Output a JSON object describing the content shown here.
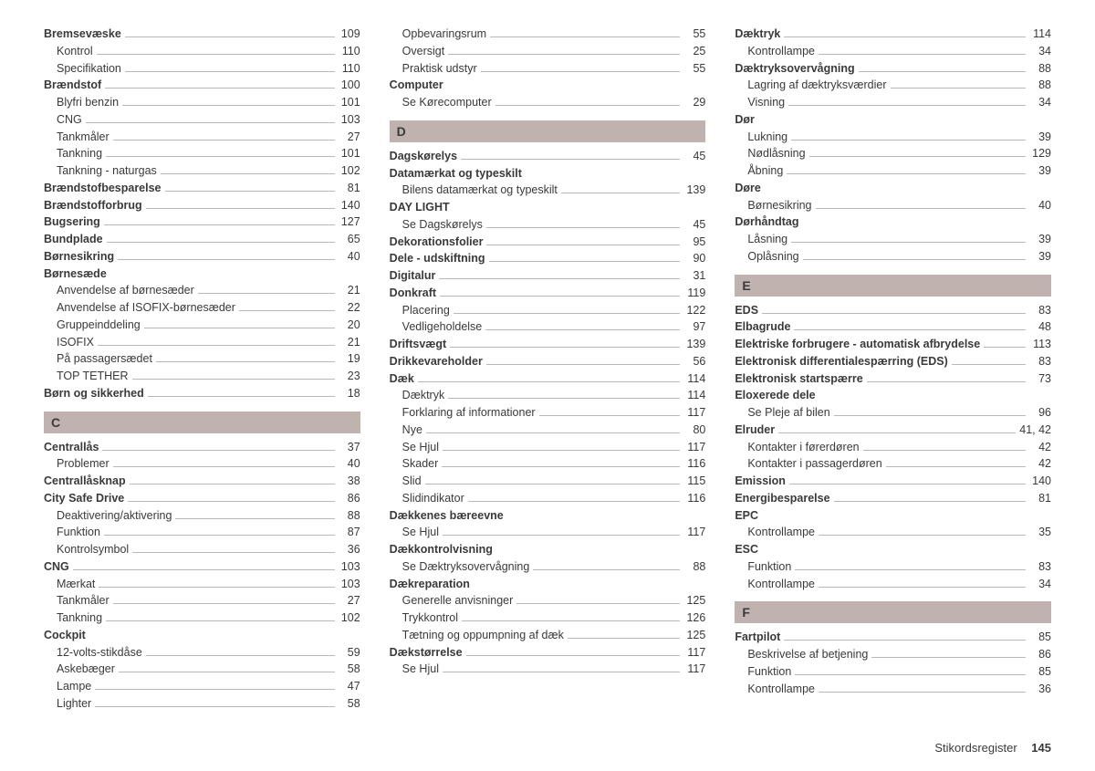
{
  "footer": {
    "title": "Stikordsregister",
    "page": "145"
  },
  "columns": [
    {
      "blocks": [
        {
          "type": "group",
          "entries": [
            {
              "label": "Bremsevæske",
              "page": "109",
              "bold": true
            },
            {
              "label": "Kontrol",
              "page": "110",
              "sub": true
            },
            {
              "label": "Specifikation",
              "page": "110",
              "sub": true
            },
            {
              "label": "Brændstof",
              "page": "100",
              "bold": true
            },
            {
              "label": "Blyfri benzin",
              "page": "101",
              "sub": true
            },
            {
              "label": "CNG",
              "page": "103",
              "sub": true
            },
            {
              "label": "Tankmåler",
              "page": "27",
              "sub": true
            },
            {
              "label": "Tankning",
              "page": "101",
              "sub": true
            },
            {
              "label": "Tankning - naturgas",
              "page": "102",
              "sub": true
            },
            {
              "label": "Brændstofbesparelse",
              "page": "81",
              "bold": true
            },
            {
              "label": "Brændstofforbrug",
              "page": "140",
              "bold": true
            },
            {
              "label": "Bugsering",
              "page": "127",
              "bold": true
            },
            {
              "label": "Bundplade",
              "page": "65",
              "bold": true
            },
            {
              "label": "Børnesikring",
              "page": "40",
              "bold": true
            },
            {
              "label": "Børnesæde",
              "page": "",
              "bold": true,
              "nopage": true
            },
            {
              "label": "Anvendelse af børnesæder",
              "page": "21",
              "sub": true
            },
            {
              "label": "Anvendelse af ISOFIX-børnesæder",
              "page": "22",
              "sub": true
            },
            {
              "label": "Gruppeinddeling",
              "page": "20",
              "sub": true
            },
            {
              "label": "ISOFIX",
              "page": "21",
              "sub": true
            },
            {
              "label": "På passagersædet",
              "page": "19",
              "sub": true
            },
            {
              "label": "TOP TETHER",
              "page": "23",
              "sub": true
            },
            {
              "label": "Børn og sikkerhed",
              "page": "18",
              "bold": true
            }
          ]
        },
        {
          "type": "letter",
          "text": "C"
        },
        {
          "type": "group",
          "entries": [
            {
              "label": "Centrallås",
              "page": "37",
              "bold": true
            },
            {
              "label": "Problemer",
              "page": "40",
              "sub": true
            },
            {
              "label": "Centrallåsknap",
              "page": "38",
              "bold": true
            },
            {
              "label": "City Safe Drive",
              "page": "86",
              "bold": true
            },
            {
              "label": "Deaktivering/aktivering",
              "page": "88",
              "sub": true
            },
            {
              "label": "Funktion",
              "page": "87",
              "sub": true
            },
            {
              "label": "Kontrolsymbol",
              "page": "36",
              "sub": true
            },
            {
              "label": "CNG",
              "page": "103",
              "bold": true
            },
            {
              "label": "Mærkat",
              "page": "103",
              "sub": true
            },
            {
              "label": "Tankmåler",
              "page": "27",
              "sub": true
            },
            {
              "label": "Tankning",
              "page": "102",
              "sub": true
            },
            {
              "label": "Cockpit",
              "page": "",
              "bold": true,
              "nopage": true
            },
            {
              "label": "12-volts-stikdåse",
              "page": "59",
              "sub": true
            },
            {
              "label": "Askebæger",
              "page": "58",
              "sub": true
            },
            {
              "label": "Lampe",
              "page": "47",
              "sub": true
            },
            {
              "label": "Lighter",
              "page": "58",
              "sub": true
            }
          ]
        }
      ]
    },
    {
      "blocks": [
        {
          "type": "group",
          "entries": [
            {
              "label": "Opbevaringsrum",
              "page": "55",
              "sub": true
            },
            {
              "label": "Oversigt",
              "page": "25",
              "sub": true
            },
            {
              "label": "Praktisk udstyr",
              "page": "55",
              "sub": true
            },
            {
              "label": "Computer",
              "page": "",
              "bold": true,
              "nopage": true
            },
            {
              "label": "Se Kørecomputer",
              "page": "29",
              "sub": true
            }
          ]
        },
        {
          "type": "letter",
          "text": "D"
        },
        {
          "type": "group",
          "entries": [
            {
              "label": "Dagskørelys",
              "page": "45",
              "bold": true
            },
            {
              "label": "Datamærkat og typeskilt",
              "page": "",
              "bold": true,
              "nopage": true
            },
            {
              "label": "Bilens datamærkat og typeskilt",
              "page": "139",
              "sub": true
            },
            {
              "label": "DAY LIGHT",
              "page": "",
              "bold": true,
              "nopage": true
            },
            {
              "label": "Se Dagskørelys",
              "page": "45",
              "sub": true
            },
            {
              "label": "Dekorationsfolier",
              "page": "95",
              "bold": true
            },
            {
              "label": "Dele - udskiftning",
              "page": "90",
              "bold": true
            },
            {
              "label": "Digitalur",
              "page": "31",
              "bold": true
            },
            {
              "label": "Donkraft",
              "page": "119",
              "bold": true
            },
            {
              "label": "Placering",
              "page": "122",
              "sub": true
            },
            {
              "label": "Vedligeholdelse",
              "page": "97",
              "sub": true
            },
            {
              "label": "Driftsvægt",
              "page": "139",
              "bold": true
            },
            {
              "label": "Drikkevareholder",
              "page": "56",
              "bold": true
            },
            {
              "label": "Dæk",
              "page": "114",
              "bold": true
            },
            {
              "label": "Dæktryk",
              "page": "114",
              "sub": true
            },
            {
              "label": "Forklaring af informationer",
              "page": "117",
              "sub": true
            },
            {
              "label": "Nye",
              "page": "80",
              "sub": true
            },
            {
              "label": "Se Hjul",
              "page": "117",
              "sub": true
            },
            {
              "label": "Skader",
              "page": "116",
              "sub": true
            },
            {
              "label": "Slid",
              "page": "115",
              "sub": true
            },
            {
              "label": "Slidindikator",
              "page": "116",
              "sub": true
            },
            {
              "label": "Dækkenes bæreevne",
              "page": "",
              "bold": true,
              "nopage": true
            },
            {
              "label": "Se Hjul",
              "page": "117",
              "sub": true
            },
            {
              "label": "Dækkontrolvisning",
              "page": "",
              "bold": true,
              "nopage": true
            },
            {
              "label": "Se Dæktryksovervågning",
              "page": "88",
              "sub": true
            },
            {
              "label": "Dækreparation",
              "page": "",
              "bold": true,
              "nopage": true
            },
            {
              "label": "Generelle anvisninger",
              "page": "125",
              "sub": true
            },
            {
              "label": "Trykkontrol",
              "page": "126",
              "sub": true
            },
            {
              "label": "Tætning og oppumpning af dæk",
              "page": "125",
              "sub": true
            },
            {
              "label": "Dækstørrelse",
              "page": "117",
              "bold": true
            },
            {
              "label": "Se Hjul",
              "page": "117",
              "sub": true
            }
          ]
        }
      ]
    },
    {
      "blocks": [
        {
          "type": "group",
          "entries": [
            {
              "label": "Dæktryk",
              "page": "114",
              "bold": true
            },
            {
              "label": "Kontrollampe",
              "page": "34",
              "sub": true
            },
            {
              "label": "Dæktryksovervågning",
              "page": "88",
              "bold": true
            },
            {
              "label": "Lagring af dæktryksværdier",
              "page": "88",
              "sub": true
            },
            {
              "label": "Visning",
              "page": "34",
              "sub": true
            },
            {
              "label": "Dør",
              "page": "",
              "bold": true,
              "nopage": true
            },
            {
              "label": "Lukning",
              "page": "39",
              "sub": true
            },
            {
              "label": "Nødlåsning",
              "page": "129",
              "sub": true
            },
            {
              "label": "Åbning",
              "page": "39",
              "sub": true
            },
            {
              "label": "Døre",
              "page": "",
              "bold": true,
              "nopage": true
            },
            {
              "label": "Børnesikring",
              "page": "40",
              "sub": true
            },
            {
              "label": "Dørhåndtag",
              "page": "",
              "bold": true,
              "nopage": true
            },
            {
              "label": "Låsning",
              "page": "39",
              "sub": true
            },
            {
              "label": "Oplåsning",
              "page": "39",
              "sub": true
            }
          ]
        },
        {
          "type": "letter",
          "text": "E"
        },
        {
          "type": "group",
          "entries": [
            {
              "label": "EDS",
              "page": "83",
              "bold": true
            },
            {
              "label": "Elbagrude",
              "page": "48",
              "bold": true
            },
            {
              "label": "Elektriske forbrugere - automatisk afbrydelse",
              "page": "113",
              "bold": true
            },
            {
              "label": "Elektronisk differentialespærring (EDS)",
              "page": "83",
              "bold": true
            },
            {
              "label": "Elektronisk startspærre",
              "page": "73",
              "bold": true
            },
            {
              "label": "Eloxerede dele",
              "page": "",
              "bold": true,
              "nopage": true
            },
            {
              "label": "Se Pleje af bilen",
              "page": "96",
              "sub": true
            },
            {
              "label": "Elruder",
              "page": "41, 42",
              "bold": true
            },
            {
              "label": "Kontakter i førerdøren",
              "page": "42",
              "sub": true
            },
            {
              "label": "Kontakter i passagerdøren",
              "page": "42",
              "sub": true
            },
            {
              "label": "Emission",
              "page": "140",
              "bold": true
            },
            {
              "label": "Energibesparelse",
              "page": "81",
              "bold": true
            },
            {
              "label": "EPC",
              "page": "",
              "bold": true,
              "nopage": true
            },
            {
              "label": "Kontrollampe",
              "page": "35",
              "sub": true
            },
            {
              "label": "ESC",
              "page": "",
              "bold": true,
              "nopage": true
            },
            {
              "label": "Funktion",
              "page": "83",
              "sub": true
            },
            {
              "label": "Kontrollampe",
              "page": "34",
              "sub": true
            }
          ]
        },
        {
          "type": "letter",
          "text": "F"
        },
        {
          "type": "group",
          "entries": [
            {
              "label": "Fartpilot",
              "page": "85",
              "bold": true
            },
            {
              "label": "Beskrivelse af betjening",
              "page": "86",
              "sub": true
            },
            {
              "label": "Funktion",
              "page": "85",
              "sub": true
            },
            {
              "label": "Kontrollampe",
              "page": "36",
              "sub": true
            }
          ]
        }
      ]
    }
  ]
}
